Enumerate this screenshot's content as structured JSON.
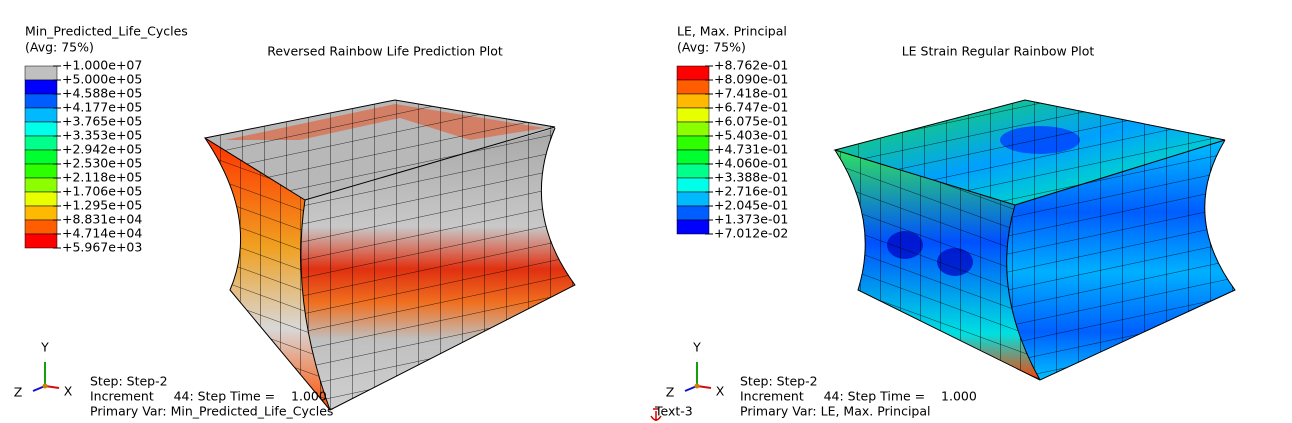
{
  "viewports": [
    {
      "legend": {
        "title": "Min_Predicted_Life_Cycles",
        "subtitle": "(Avg: 75%)",
        "labels": [
          "+1.000e+07",
          "+5.000e+05",
          "+4.588e+05",
          "+4.177e+05",
          "+3.765e+05",
          "+3.353e+05",
          "+2.942e+05",
          "+2.530e+05",
          "+2.118e+05",
          "+1.706e+05",
          "+1.295e+05",
          "+8.831e+04",
          "+4.714e+04",
          "+5.967e+03"
        ],
        "colors": [
          "#c0c0c0",
          "#0000ff",
          "#005dff",
          "#00b9ff",
          "#00ffe8",
          "#00ff8b",
          "#00ff2e",
          "#2eff00",
          "#8bff00",
          "#e8ff00",
          "#ffb900",
          "#ff5d00",
          "#ff0000"
        ]
      },
      "title": "Reversed Rainbow Life Prediction Plot",
      "info": [
        "Step: Step-2",
        "Increment     44: Step Time =    1.000",
        "Primary Var: Min_Predicted_Life_Cycles"
      ],
      "triad": {
        "y": "Y",
        "x": "X",
        "z": "Z"
      }
    },
    {
      "legend": {
        "title": "LE, Max. Principal",
        "subtitle": "(Avg: 75%)",
        "labels": [
          "+8.762e-01",
          "+8.090e-01",
          "+7.418e-01",
          "+6.747e-01",
          "+6.075e-01",
          "+5.403e-01",
          "+4.731e-01",
          "+4.060e-01",
          "+3.388e-01",
          "+2.716e-01",
          "+2.045e-01",
          "+1.373e-01",
          "+7.012e-02"
        ],
        "colors": [
          "#ff0000",
          "#ff5d00",
          "#ffb900",
          "#e8ff00",
          "#8bff00",
          "#2eff00",
          "#00ff2e",
          "#00ff8b",
          "#00ffe8",
          "#00b9ff",
          "#005dff",
          "#0000ff"
        ]
      },
      "title": "LE Strain Regular Rainbow Plot",
      "info": [
        "Step: Step-2",
        "Increment     44: Step Time =    1.000",
        "Primary Var: LE, Max. Principal"
      ],
      "triad": {
        "y": "Y",
        "x": "X",
        "z": "Z"
      },
      "annotation": "Text-3"
    }
  ]
}
